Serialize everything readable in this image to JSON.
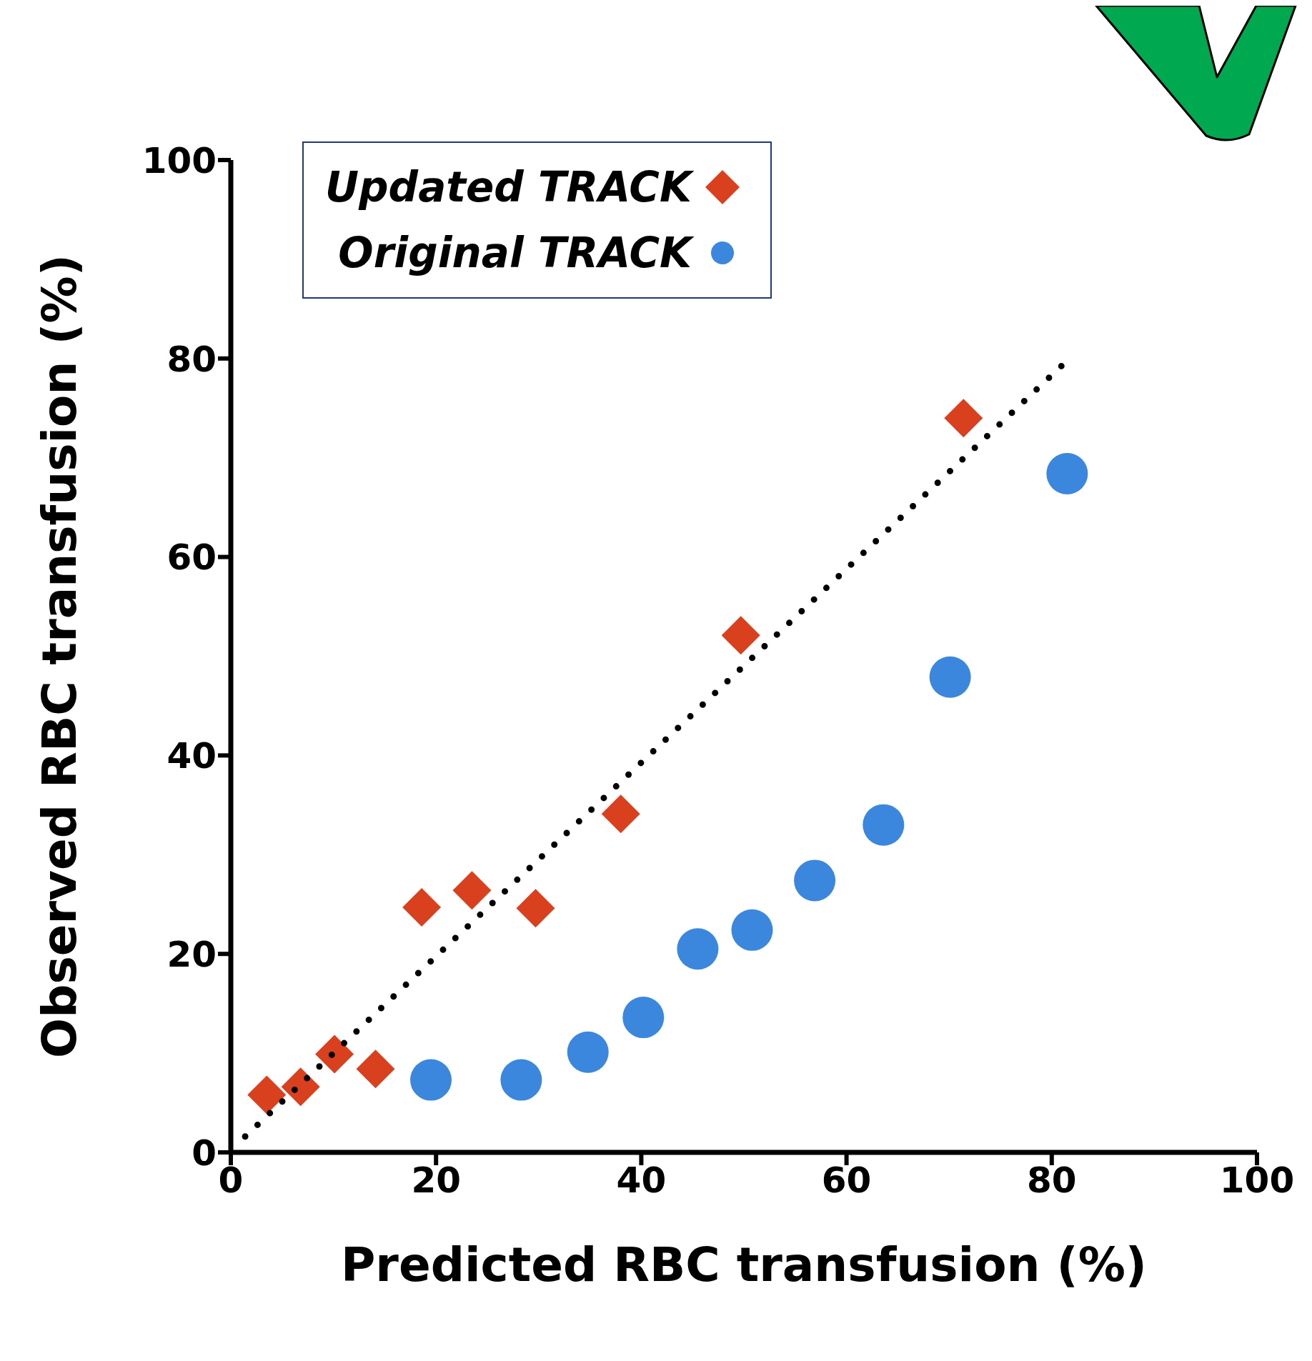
{
  "chart_data": {
    "type": "scatter",
    "xlabel": "Predicted RBC transfusion (%)",
    "ylabel": "Observed RBC transfusion (%)",
    "xlim": [
      0,
      100
    ],
    "ylim": [
      0,
      100
    ],
    "xticks": [
      0,
      20,
      40,
      60,
      80,
      100
    ],
    "yticks": [
      0,
      20,
      40,
      60,
      80,
      100
    ],
    "grid": false,
    "legend": "top left",
    "series": [
      {
        "name": "Updated TRACK",
        "color": "#d9411e",
        "marker": "diamond",
        "x": [
          3.5,
          6.8,
          10.1,
          14.1,
          18.6,
          23.5,
          29.7,
          38.0,
          49.7,
          71.4
        ],
        "values": [
          5.8,
          6.6,
          9.9,
          8.4,
          24.7,
          26.4,
          24.6,
          34.1,
          52.1,
          74.0
        ]
      },
      {
        "name": "Original TRACK",
        "color": "#3b87dd",
        "marker": "circle",
        "x": [
          19.5,
          28.3,
          34.8,
          40.2,
          45.5,
          50.8,
          56.9,
          63.6,
          70.1,
          81.5
        ],
        "values": [
          7.3,
          7.3,
          10.1,
          13.6,
          20.5,
          22.4,
          27.4,
          33.0,
          47.9,
          68.4
        ]
      },
      {
        "type": "line",
        "color": "#000000",
        "line_style": "dotted",
        "marker": "none",
        "x": [
          1.4,
          81.0
        ],
        "values": [
          1.6,
          79.3
        ]
      }
    ]
  }
}
